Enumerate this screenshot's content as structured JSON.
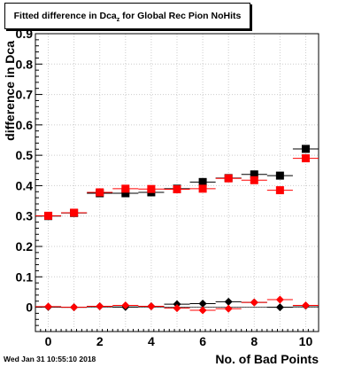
{
  "title": {
    "main": "Fitted difference in Dca",
    "sub": "z",
    "rest": " for Global Rec Pion NoHits"
  },
  "timestamp": "Wed Jan 31 10:55:10 2018",
  "colors": {
    "series_black": "#000000",
    "series_red": "#ff0000",
    "grid": "#cccccc",
    "axis": "#000000"
  },
  "chart_data": {
    "type": "scatter",
    "title": "Fitted difference in Dca_z for Global Rec Pion NoHits",
    "xlabel": "No. of Bad Points",
    "ylabel": "difference in Dca",
    "xlim": [
      -0.5,
      10.5
    ],
    "ylim": [
      -0.08,
      0.9
    ],
    "grid": true,
    "xticks": [
      0,
      2,
      4,
      6,
      8,
      10
    ],
    "yticks": [
      0,
      0.1,
      0.2,
      0.3,
      0.4,
      0.5,
      0.6,
      0.7,
      0.8,
      0.9
    ],
    "ytick_labels": [
      "0",
      "0.1",
      "0.2",
      "0.3",
      "0.4",
      "0.5",
      "0.6",
      "0.7",
      "0.8",
      "0.9"
    ],
    "series": [
      {
        "color": "#000000",
        "marker": "square",
        "x": [
          0,
          1,
          2,
          3,
          4,
          5,
          6,
          7,
          8,
          9,
          10
        ],
        "y": [
          0.3,
          0.31,
          0.375,
          0.375,
          0.378,
          0.39,
          0.412,
          0.425,
          0.437,
          0.433,
          0.521
        ]
      },
      {
        "color": "#ff0000",
        "marker": "square",
        "x": [
          0,
          1,
          2,
          3,
          4,
          5,
          6,
          7,
          8,
          9,
          10
        ],
        "y": [
          0.301,
          0.311,
          0.378,
          0.39,
          0.389,
          0.388,
          0.39,
          0.424,
          0.418,
          0.385,
          0.49
        ]
      },
      {
        "color": "#000000",
        "marker": "diamond",
        "x": [
          0,
          1,
          2,
          3,
          4,
          5,
          6,
          7,
          8,
          9,
          10
        ],
        "y": [
          0.001,
          0.0,
          0.003,
          0.001,
          0.003,
          0.01,
          0.012,
          0.018,
          0.016,
          0.0,
          0.005
        ]
      },
      {
        "color": "#ff0000",
        "marker": "diamond",
        "x": [
          0,
          1,
          2,
          3,
          4,
          5,
          6,
          7,
          8,
          9,
          10
        ],
        "y": [
          0.002,
          0.0,
          0.003,
          0.006,
          0.003,
          -0.003,
          -0.01,
          -0.005,
          0.016,
          0.025,
          0.006
        ]
      }
    ]
  }
}
